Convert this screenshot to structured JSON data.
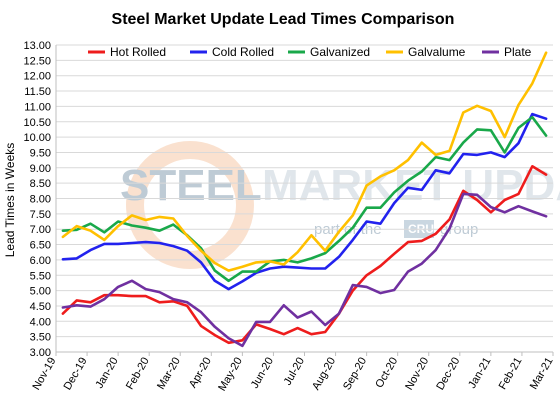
{
  "chart_data": {
    "type": "line",
    "title": "Steel Market Update Lead Times Comparison",
    "xlabel": "",
    "ylabel": "Lead Times in Weeks",
    "ylim": [
      3.0,
      13.0
    ],
    "yticks": [
      "3.00",
      "3.50",
      "4.00",
      "4.50",
      "5.00",
      "5.50",
      "6.00",
      "6.50",
      "7.00",
      "7.50",
      "8.00",
      "8.50",
      "9.00",
      "9.50",
      "10.00",
      "10.50",
      "11.00",
      "11.50",
      "12.00",
      "12.50",
      "13.00"
    ],
    "x_tick_labels": [
      "Nov-19",
      "Dec-19",
      "Jan-20",
      "Feb-20",
      "Mar-20",
      "Apr-20",
      "May-20",
      "Jun-20",
      "Jul-20",
      "Aug-20",
      "Sep-20",
      "Oct-20",
      "Nov-20",
      "Dec-20",
      "Jan-21",
      "Feb-21",
      "Mar-21"
    ],
    "grid": true,
    "legend": "top",
    "watermark": {
      "brand_left": "STEEL",
      "brand_right": "MARKET UPDATE",
      "tagline_left": "part of the",
      "tagline_box": "CRU",
      "tagline_right": "group"
    },
    "series": [
      {
        "name": "Hot Rolled",
        "color": "#ee1c1c",
        "values": [
          4.25,
          4.68,
          4.62,
          4.85,
          4.85,
          4.82,
          4.82,
          4.62,
          4.65,
          4.5,
          3.85,
          3.55,
          3.3,
          3.38,
          3.9,
          3.75,
          3.58,
          3.78,
          3.58,
          3.65,
          4.25,
          5.0,
          5.5,
          5.8,
          6.2,
          6.58,
          6.62,
          6.85,
          7.32,
          8.25,
          7.95,
          7.55,
          7.95,
          8.15,
          9.05,
          8.78
        ]
      },
      {
        "name": "Cold Rolled",
        "color": "#2222ee",
        "values": [
          6.02,
          6.05,
          6.32,
          6.52,
          6.52,
          6.55,
          6.58,
          6.55,
          6.45,
          6.3,
          5.92,
          5.32,
          5.05,
          5.3,
          5.58,
          5.72,
          5.78,
          5.75,
          5.72,
          5.72,
          6.1,
          6.65,
          7.25,
          7.18,
          7.85,
          8.35,
          8.28,
          8.92,
          8.82,
          9.45,
          9.42,
          9.5,
          9.35,
          9.8,
          10.75,
          10.6
        ]
      },
      {
        "name": "Galvanized",
        "color": "#19a84a",
        "values": [
          6.95,
          6.98,
          7.18,
          6.9,
          7.25,
          7.12,
          7.05,
          6.95,
          7.15,
          6.8,
          6.38,
          5.65,
          5.32,
          5.62,
          5.62,
          5.95,
          6.0,
          5.92,
          6.05,
          6.22,
          6.62,
          7.05,
          7.7,
          7.7,
          8.2,
          8.58,
          8.88,
          9.35,
          9.25,
          9.82,
          10.25,
          10.22,
          9.5,
          10.3,
          10.65,
          10.05
        ]
      },
      {
        "name": "Galvalume",
        "color": "#ffc000",
        "values": [
          6.75,
          7.1,
          6.95,
          6.65,
          7.1,
          7.45,
          7.3,
          7.4,
          7.35,
          6.78,
          6.3,
          5.9,
          5.65,
          5.78,
          5.92,
          5.95,
          5.85,
          6.25,
          6.8,
          6.3,
          6.92,
          7.45,
          8.42,
          8.72,
          8.92,
          9.25,
          9.82,
          9.42,
          9.55,
          10.8,
          11.02,
          10.85,
          10.0,
          11.05,
          11.75,
          12.75
        ]
      },
      {
        "name": "Plate",
        "color": "#7030a0",
        "values": [
          4.45,
          4.52,
          4.48,
          4.72,
          5.12,
          5.32,
          5.05,
          4.95,
          4.72,
          4.62,
          4.3,
          3.82,
          3.45,
          3.2,
          3.98,
          3.98,
          4.52,
          4.12,
          4.32,
          3.88,
          4.25,
          5.18,
          5.12,
          4.92,
          5.02,
          5.62,
          5.88,
          6.32,
          7.02,
          8.15,
          8.12,
          7.72,
          7.55,
          7.75,
          7.58,
          7.42
        ]
      }
    ]
  }
}
